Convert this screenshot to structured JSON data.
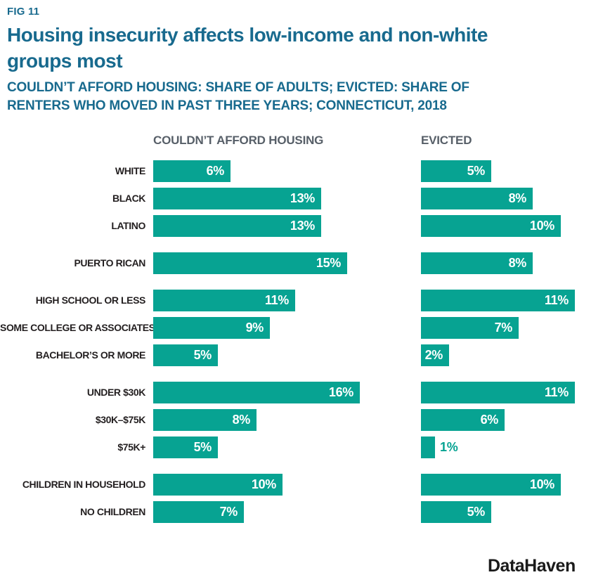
{
  "footer": {
    "logo_text": "DataHaven"
  },
  "chart_data": {
    "type": "bar",
    "orientation": "horizontal",
    "fig_label": "FIG 11",
    "title": "Housing insecurity affects low-income and non-white groups most",
    "subtitle": "COULDN’T AFFORD HOUSING: SHARE OF ADULTS; EVICTED: SHARE OF RENTERS WHO MOVED IN PAST THREE YEARS; CONNECTICUT, 2018",
    "region_year": "CONNECTICUT, 2018",
    "unit": "%",
    "value_suffix": "%",
    "grid": false,
    "legend": false,
    "panels": [
      {
        "header": "COULDN’T AFFORD HOUSING",
        "max_value": 16
      },
      {
        "header": "EVICTED",
        "max_value": 11
      }
    ],
    "groups": [
      {
        "rows": [
          {
            "label": "WHITE",
            "values": [
              6,
              5
            ]
          },
          {
            "label": "BLACK",
            "values": [
              13,
              8
            ]
          },
          {
            "label": "LATINO",
            "values": [
              13,
              10
            ]
          }
        ]
      },
      {
        "rows": [
          {
            "label": "PUERTO RICAN",
            "values": [
              15,
              8
            ]
          }
        ]
      },
      {
        "rows": [
          {
            "label": "HIGH SCHOOL OR LESS",
            "values": [
              11,
              11
            ]
          },
          {
            "label": "SOME COLLEGE OR ASSOCIATES",
            "values": [
              9,
              7
            ]
          },
          {
            "label": "BACHELOR’S OR MORE",
            "values": [
              5,
              2
            ]
          }
        ]
      },
      {
        "rows": [
          {
            "label": "UNDER $30K",
            "values": [
              16,
              11
            ]
          },
          {
            "label": "$30K–$75K",
            "values": [
              8,
              6
            ]
          },
          {
            "label": "$75K+",
            "values": [
              5,
              1
            ]
          }
        ]
      },
      {
        "rows": [
          {
            "label": "CHILDREN IN HOUSEHOLD",
            "values": [
              10,
              10
            ]
          },
          {
            "label": "NO CHILDREN",
            "values": [
              7,
              5
            ]
          }
        ]
      }
    ],
    "colors": {
      "bar": "#07a392",
      "title_text": "#186a8e",
      "column_header_text": "#575f68",
      "row_label_text": "#231f20",
      "value_label_inside": "#ffffff",
      "value_label_outside": "#07a392",
      "logo_text": "#1a1a1a",
      "background": "#ffffff"
    }
  }
}
